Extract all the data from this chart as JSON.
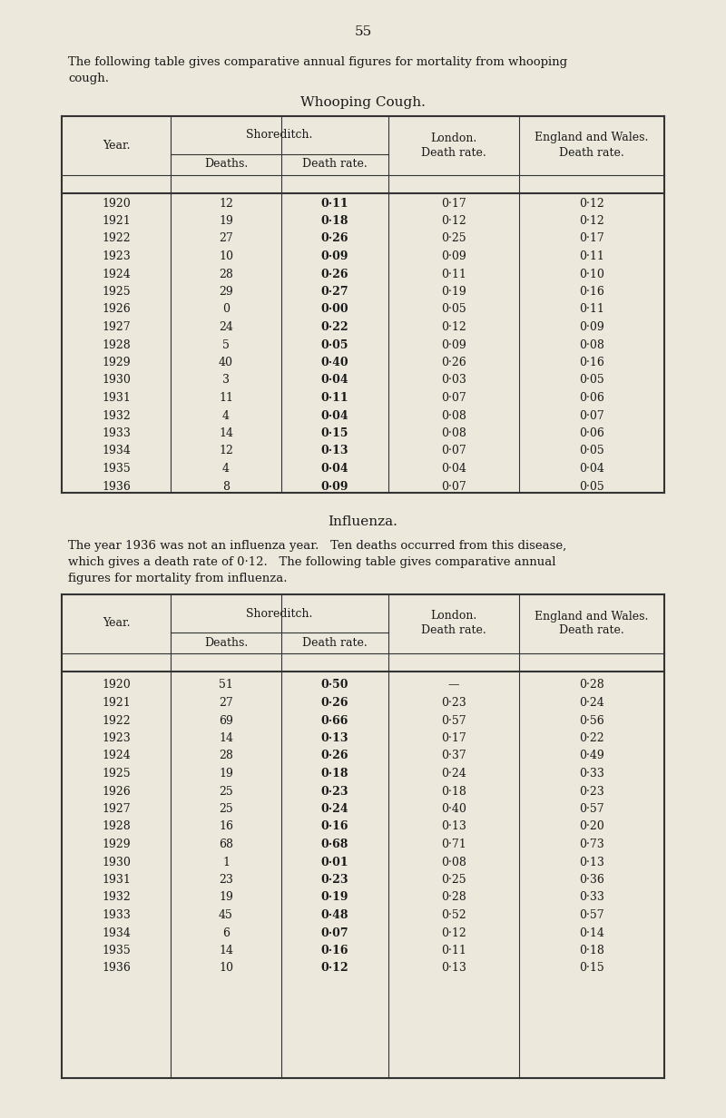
{
  "page_number": "55",
  "bg_color": "#ece8dc",
  "text_color": "#1a1a1a",
  "wc_data": {
    "years": [
      1920,
      1921,
      1922,
      1923,
      1924,
      1925,
      1926,
      1927,
      1928,
      1929,
      1930,
      1931,
      1932,
      1933,
      1934,
      1935,
      1936
    ],
    "deaths": [
      "12",
      "19",
      "27",
      "10",
      "28",
      "29",
      "0",
      "24",
      "5",
      "40",
      "3",
      "11",
      "4",
      "14",
      "12",
      "4",
      "8"
    ],
    "death_rate": [
      "0·11",
      "0·18",
      "0·26",
      "0·09",
      "0·26",
      "0·27",
      "0·00",
      "0·22",
      "0·05",
      "0·40",
      "0·04",
      "0·11",
      "0·04",
      "0·15",
      "0·13",
      "0·04",
      "0·09"
    ],
    "london_dr": [
      "0·17",
      "0·12",
      "0·25",
      "0·09",
      "0·11",
      "0·19",
      "0·05",
      "0·12",
      "0·09",
      "0·26",
      "0·03",
      "0·07",
      "0·08",
      "0·08",
      "0·07",
      "0·04",
      "0·07"
    ],
    "ew_dr": [
      "0·12",
      "0·12",
      "0·17",
      "0·11",
      "0·10",
      "0·16",
      "0·11",
      "0·09",
      "0·08",
      "0·16",
      "0·05",
      "0·06",
      "0·07",
      "0·06",
      "0·05",
      "0·04",
      "0·05"
    ]
  },
  "inf_data": {
    "years": [
      1920,
      1921,
      1922,
      1923,
      1924,
      1925,
      1926,
      1927,
      1928,
      1929,
      1930,
      1931,
      1932,
      1933,
      1934,
      1935,
      1936
    ],
    "deaths": [
      "51",
      "27",
      "69",
      "14",
      "28",
      "19",
      "25",
      "25",
      "16",
      "68",
      "1",
      "23",
      "19",
      "45",
      "6",
      "14",
      "10"
    ],
    "death_rate": [
      "0·50",
      "0·26",
      "0·66",
      "0·13",
      "0·26",
      "0·18",
      "0·23",
      "0·24",
      "0·16",
      "0·68",
      "0·01",
      "0·23",
      "0·19",
      "0·48",
      "0·07",
      "0·16",
      "0·12"
    ],
    "london_dr": [
      "—",
      "0·23",
      "0·57",
      "0·17",
      "0·37",
      "0·24",
      "0·18",
      "0·40",
      "0·13",
      "0·71",
      "0·08",
      "0·25",
      "0·28",
      "0·52",
      "0·12",
      "0·11",
      "0·13"
    ],
    "ew_dr": [
      "0·28",
      "0·24",
      "0·56",
      "0·22",
      "0·49",
      "0·33",
      "0·23",
      "0·57",
      "0·20",
      "0·73",
      "0·13",
      "0·36",
      "0·33",
      "0·57",
      "0·14",
      "0·18",
      "0·15"
    ]
  }
}
